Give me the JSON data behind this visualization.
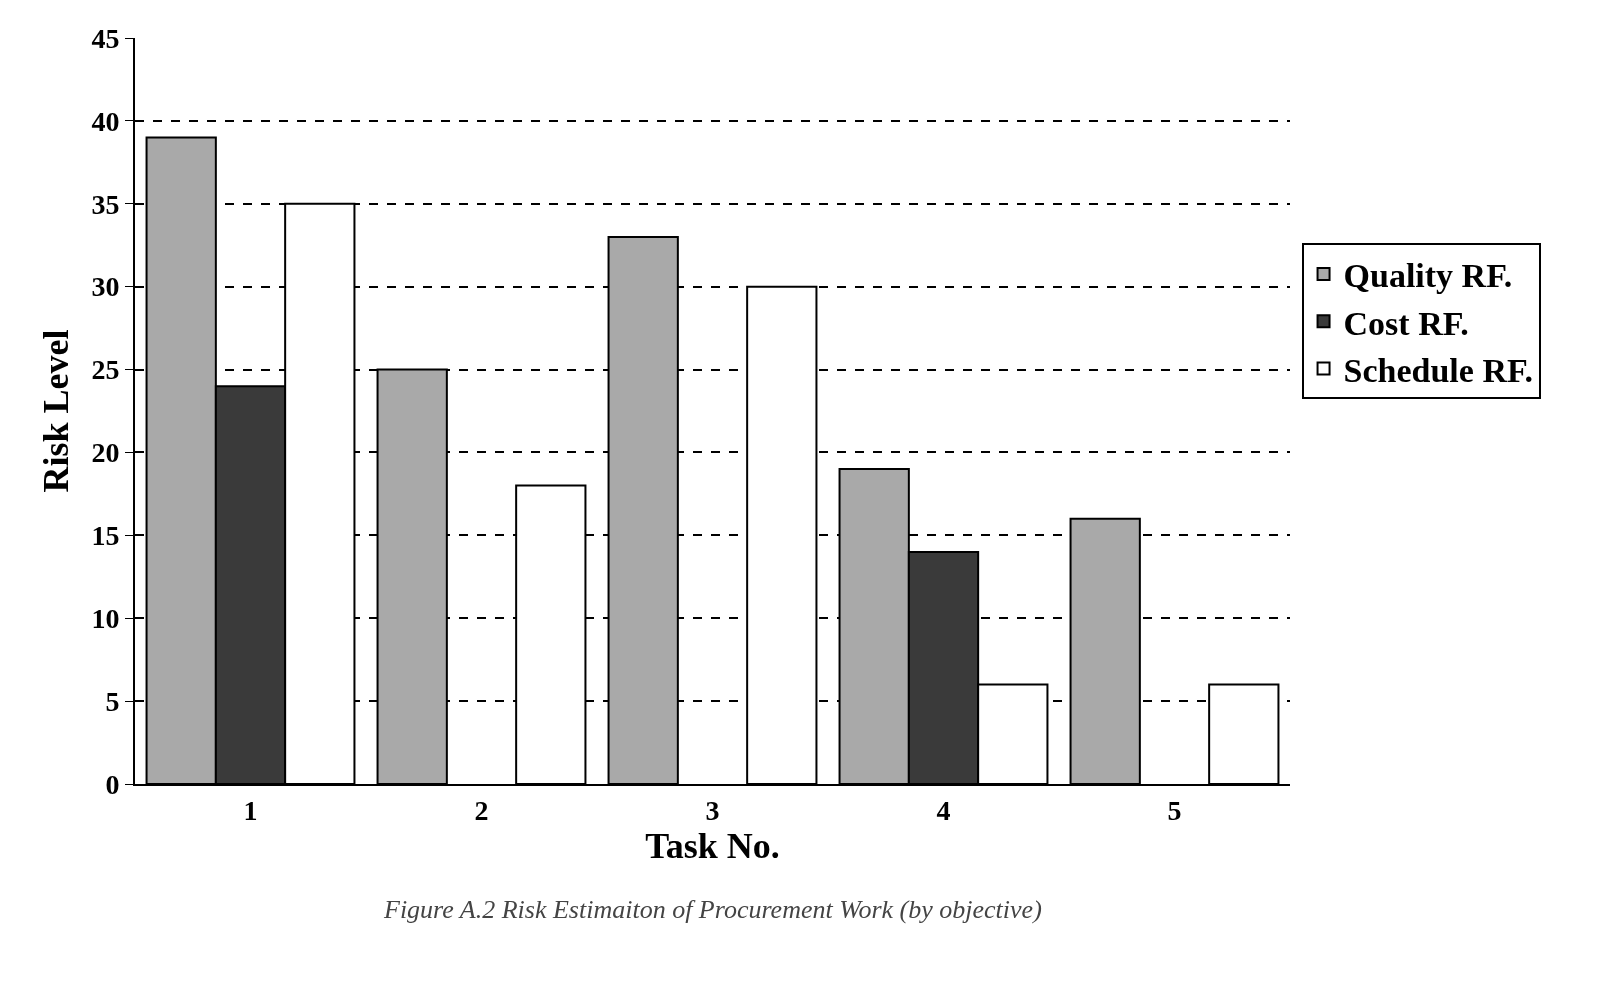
{
  "chart_data": {
    "type": "bar",
    "xlabel": "Task No.",
    "ylabel": "Risk Level",
    "categories": [
      "1",
      "2",
      "3",
      "4",
      "5"
    ],
    "series": [
      {
        "name": "Quality RF.",
        "color": "#a9a9a9",
        "values": [
          39,
          25,
          33,
          19,
          16
        ]
      },
      {
        "name": "Cost RF.",
        "color": "#3a3a3a",
        "values": [
          24,
          null,
          null,
          14,
          null
        ]
      },
      {
        "name": "Schedule RF.",
        "color": "#ffffff",
        "values": [
          35,
          18,
          30,
          6,
          6
        ]
      }
    ],
    "ylim": [
      0,
      45
    ],
    "yticks": [
      0,
      5,
      10,
      15,
      20,
      25,
      30,
      35,
      40,
      45
    ],
    "grid": "y",
    "legend": "right",
    "annotations": [
      "Figure A.2 Risk Estimaiton of Procurement Work (by objective)"
    ]
  }
}
